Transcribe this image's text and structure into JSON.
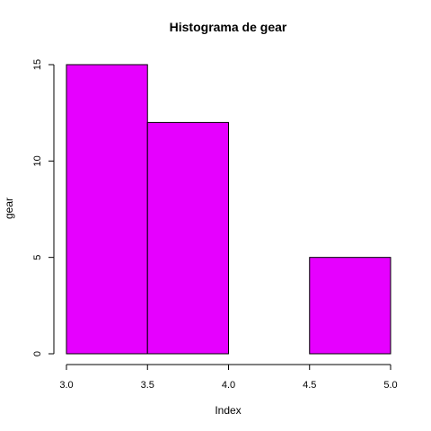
{
  "chart_data": {
    "type": "bar",
    "title": "Histograma de  gear",
    "xlabel": "Index",
    "ylabel": "gear",
    "bar_color": "#e600ff",
    "xlim": [
      3.0,
      5.0
    ],
    "ylim": [
      0,
      15
    ],
    "x_ticks": [
      {
        "value": 3.0,
        "label": "3.0"
      },
      {
        "value": 3.5,
        "label": "3.5"
      },
      {
        "value": 4.0,
        "label": "4.0"
      },
      {
        "value": 4.5,
        "label": "4.5"
      },
      {
        "value": 5.0,
        "label": "5.0"
      }
    ],
    "y_ticks": [
      {
        "value": 0,
        "label": "0"
      },
      {
        "value": 5,
        "label": "5"
      },
      {
        "value": 10,
        "label": "10"
      },
      {
        "value": 15,
        "label": "15"
      }
    ],
    "bins": [
      {
        "start": 3.0,
        "end": 3.5,
        "count": 15
      },
      {
        "start": 3.5,
        "end": 4.0,
        "count": 12
      },
      {
        "start": 4.0,
        "end": 4.5,
        "count": 0
      },
      {
        "start": 4.5,
        "end": 5.0,
        "count": 5
      }
    ]
  }
}
